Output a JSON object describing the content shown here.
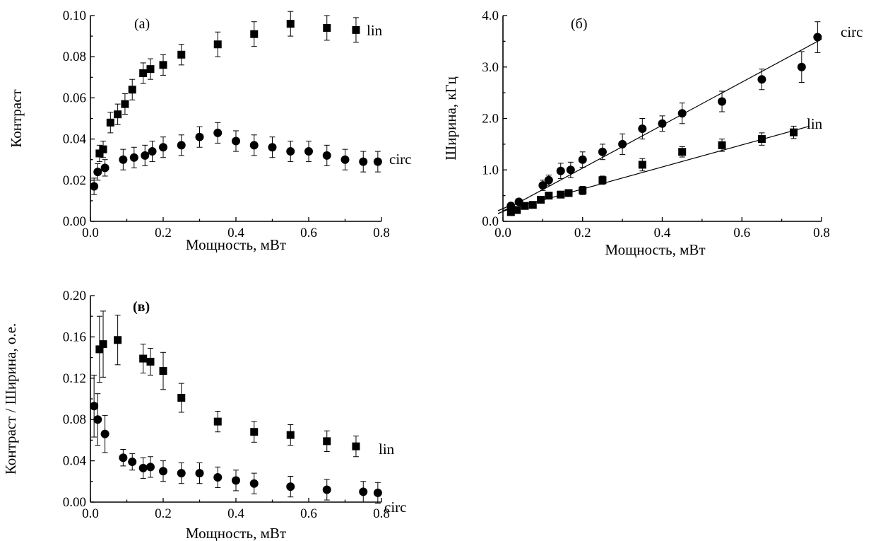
{
  "chart_data": [
    {
      "id": "a",
      "type": "scatter",
      "panel_label": "(а)",
      "xlabel": "Мощность, мВт",
      "ylabel": "Контраст",
      "xlim": [
        0,
        0.8
      ],
      "ylim": [
        0,
        0.1
      ],
      "xticks": [
        0.0,
        0.2,
        0.4,
        0.6,
        0.8
      ],
      "xtick_labels": [
        "0.0",
        "0.2",
        "0.4",
        "0.6",
        "0.8"
      ],
      "yticks": [
        0.0,
        0.02,
        0.04,
        0.06,
        0.08,
        0.1
      ],
      "ytick_labels": [
        "0.00",
        "0.02",
        "0.04",
        "0.06",
        "0.08",
        "0.10"
      ],
      "series": [
        {
          "name": "lin",
          "marker": "square",
          "x": [
            0.025,
            0.035,
            0.055,
            0.075,
            0.095,
            0.115,
            0.145,
            0.165,
            0.2,
            0.25,
            0.35,
            0.45,
            0.55,
            0.65,
            0.73
          ],
          "y": [
            0.033,
            0.035,
            0.048,
            0.052,
            0.057,
            0.064,
            0.072,
            0.074,
            0.076,
            0.081,
            0.086,
            0.091,
            0.096,
            0.094,
            0.093
          ],
          "err": [
            0.004,
            0.004,
            0.005,
            0.005,
            0.005,
            0.005,
            0.005,
            0.005,
            0.005,
            0.005,
            0.006,
            0.006,
            0.006,
            0.006,
            0.006
          ]
        },
        {
          "name": "circ",
          "marker": "circle",
          "x": [
            0.01,
            0.02,
            0.04,
            0.09,
            0.12,
            0.15,
            0.17,
            0.2,
            0.25,
            0.3,
            0.35,
            0.4,
            0.45,
            0.5,
            0.55,
            0.6,
            0.65,
            0.7,
            0.75,
            0.79
          ],
          "y": [
            0.017,
            0.024,
            0.026,
            0.03,
            0.031,
            0.032,
            0.034,
            0.036,
            0.037,
            0.041,
            0.043,
            0.039,
            0.037,
            0.036,
            0.034,
            0.034,
            0.032,
            0.03,
            0.029,
            0.029
          ],
          "err": [
            0.004,
            0.004,
            0.004,
            0.005,
            0.005,
            0.005,
            0.005,
            0.005,
            0.005,
            0.005,
            0.005,
            0.005,
            0.005,
            0.005,
            0.005,
            0.005,
            0.005,
            0.005,
            0.005,
            0.005
          ]
        }
      ]
    },
    {
      "id": "b",
      "type": "scatter",
      "panel_label": "(б)",
      "xlabel": "Мощность, мВт",
      "ylabel": "Ширина, кГц",
      "xlim": [
        0,
        0.8
      ],
      "ylim": [
        0,
        4.0
      ],
      "xticks": [
        0.0,
        0.2,
        0.4,
        0.6,
        0.8
      ],
      "xtick_labels": [
        "0.0",
        "0.2",
        "0.4",
        "0.6",
        "0.8"
      ],
      "yticks": [
        0.0,
        1.0,
        2.0,
        3.0,
        4.0
      ],
      "ytick_labels": [
        "0.0",
        "1.0",
        "2.0",
        "3.0",
        "4.0"
      ],
      "series": [
        {
          "name": "circ",
          "marker": "circle",
          "x": [
            0.02,
            0.04,
            0.1,
            0.115,
            0.145,
            0.17,
            0.2,
            0.25,
            0.3,
            0.35,
            0.4,
            0.45,
            0.55,
            0.65,
            0.75,
            0.79
          ],
          "y": [
            0.3,
            0.38,
            0.7,
            0.8,
            0.98,
            1.0,
            1.2,
            1.35,
            1.5,
            1.8,
            1.9,
            2.1,
            2.33,
            2.76,
            3.0,
            3.58
          ],
          "err": [
            0.05,
            0.05,
            0.1,
            0.1,
            0.15,
            0.15,
            0.15,
            0.15,
            0.2,
            0.2,
            0.15,
            0.2,
            0.2,
            0.2,
            0.3,
            0.3
          ],
          "fit": {
            "x": [
              0.0,
              0.8
            ],
            "y": [
              0.2,
              3.54
            ]
          }
        },
        {
          "name": "lin",
          "marker": "square",
          "x": [
            0.02,
            0.035,
            0.055,
            0.075,
            0.095,
            0.115,
            0.145,
            0.165,
            0.2,
            0.25,
            0.35,
            0.45,
            0.55,
            0.65,
            0.73
          ],
          "y": [
            0.18,
            0.22,
            0.3,
            0.32,
            0.42,
            0.5,
            0.52,
            0.55,
            0.6,
            0.8,
            1.1,
            1.35,
            1.48,
            1.6,
            1.73
          ],
          "err": [
            0.05,
            0.05,
            0.05,
            0.05,
            0.05,
            0.05,
            0.05,
            0.05,
            0.08,
            0.08,
            0.12,
            0.1,
            0.12,
            0.12,
            0.12
          ],
          "fit": {
            "x": [
              0.0,
              0.77
            ],
            "y": [
              0.2,
              1.85
            ]
          }
        }
      ]
    },
    {
      "id": "c",
      "type": "scatter",
      "panel_label": "(в)",
      "xlabel": "Мощность, мВт",
      "ylabel": "Контраст / Ширина, о.е.",
      "xlim": [
        0,
        0.8
      ],
      "ylim": [
        0,
        0.2
      ],
      "xticks": [
        0.0,
        0.2,
        0.4,
        0.6,
        0.8
      ],
      "xtick_labels": [
        "0.0",
        "0.2",
        "0.4",
        "0.6",
        "0.8"
      ],
      "yticks": [
        0.0,
        0.04,
        0.08,
        0.12,
        0.16,
        0.2
      ],
      "ytick_labels": [
        "0.00",
        "0.04",
        "0.08",
        "0.12",
        "0.16",
        "0.20"
      ],
      "series": [
        {
          "name": "lin",
          "marker": "square",
          "x": [
            0.025,
            0.035,
            0.075,
            0.145,
            0.165,
            0.2,
            0.25,
            0.35,
            0.45,
            0.55,
            0.65,
            0.73
          ],
          "y": [
            0.148,
            0.153,
            0.157,
            0.139,
            0.136,
            0.127,
            0.101,
            0.078,
            0.068,
            0.065,
            0.059,
            0.054
          ],
          "err": [
            0.032,
            0.032,
            0.024,
            0.014,
            0.013,
            0.018,
            0.014,
            0.01,
            0.01,
            0.01,
            0.01,
            0.01
          ]
        },
        {
          "name": "circ",
          "marker": "circle",
          "x": [
            0.01,
            0.02,
            0.04,
            0.09,
            0.115,
            0.145,
            0.165,
            0.2,
            0.25,
            0.3,
            0.35,
            0.4,
            0.45,
            0.55,
            0.65,
            0.75,
            0.79
          ],
          "y": [
            0.093,
            0.08,
            0.066,
            0.043,
            0.039,
            0.033,
            0.034,
            0.03,
            0.028,
            0.028,
            0.024,
            0.021,
            0.018,
            0.015,
            0.012,
            0.01,
            0.009
          ],
          "err": [
            0.03,
            0.025,
            0.018,
            0.008,
            0.008,
            0.01,
            0.01,
            0.01,
            0.01,
            0.01,
            0.01,
            0.01,
            0.01,
            0.01,
            0.01,
            0.01,
            0.01
          ]
        }
      ]
    }
  ]
}
